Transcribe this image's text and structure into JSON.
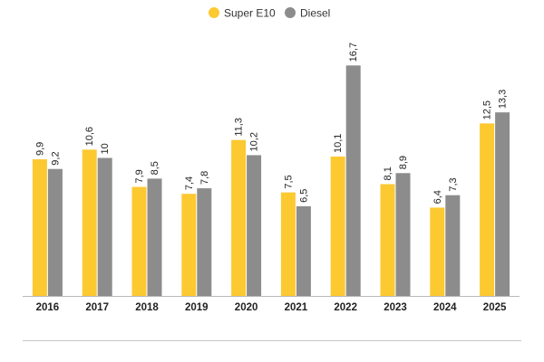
{
  "chart_data": {
    "type": "bar",
    "title": "",
    "xlabel": "",
    "ylabel": "",
    "categories": [
      "2016",
      "2017",
      "2018",
      "2019",
      "2020",
      "2021",
      "2022",
      "2023",
      "2024",
      "2025"
    ],
    "series": [
      {
        "name": "Super E10",
        "color": "#FCC931",
        "values": [
          9.9,
          10.6,
          7.9,
          7.4,
          11.3,
          7.5,
          10.1,
          8.1,
          6.4,
          12.5
        ],
        "labels": [
          "9,9",
          "10,6",
          "7,9",
          "7,4",
          "11,3",
          "7,5",
          "10,1",
          "8,1",
          "6,4",
          "12,5"
        ]
      },
      {
        "name": "Diesel",
        "color": "#8C8C8C",
        "values": [
          9.2,
          10,
          8.5,
          7.8,
          10.2,
          6.5,
          16.7,
          8.9,
          7.3,
          13.3
        ],
        "labels": [
          "9,2",
          "10",
          "8,5",
          "7,8",
          "10,2",
          "6,5",
          "16,7",
          "8,9",
          "7,3",
          "13,3"
        ]
      }
    ],
    "ylim": [
      0,
      16.7
    ],
    "grid": false,
    "legend": "top-center",
    "data_labels": "rotated-above-bars"
  }
}
